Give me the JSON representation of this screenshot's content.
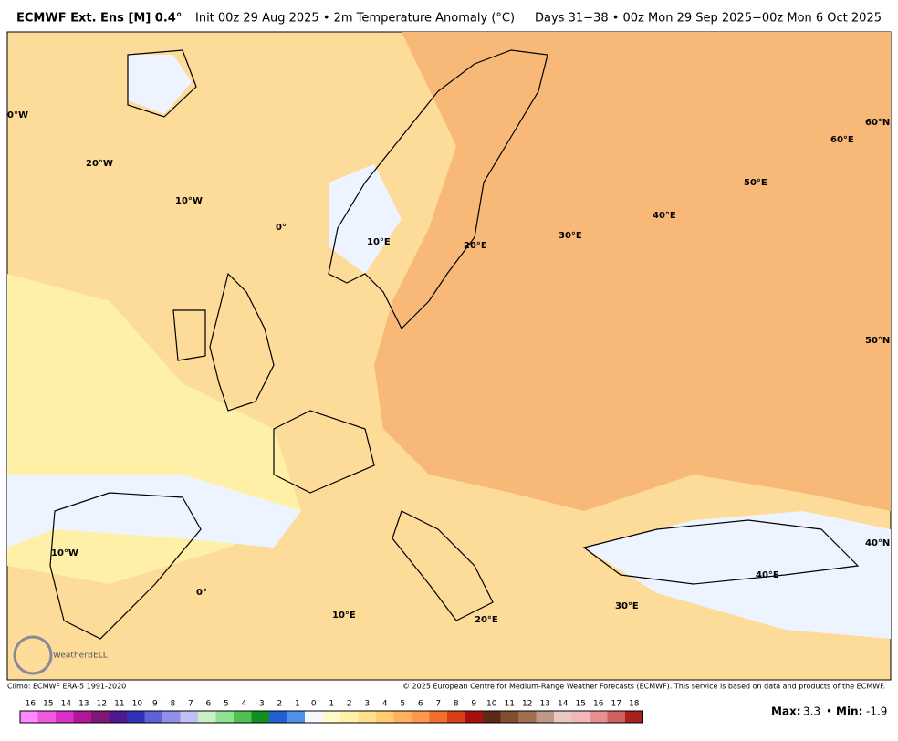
{
  "header": {
    "model": "ECMWF Ext. Ens [M] 0.4°",
    "info": "Init 00z 29 Aug 2025 • 2m Temperature Anomaly (°C)",
    "period": "Days 31−38 • 00z Mon 29 Sep 2025−00z Mon 6 Oct 2025"
  },
  "map": {
    "grid_labels": [
      "0°W",
      "20°W",
      "10°W",
      "0°",
      "10°E",
      "20°E",
      "30°E",
      "40°E",
      "50°E",
      "60°E",
      "60°N",
      "50°N",
      "40°N",
      "40°E",
      "30°E",
      "20°E",
      "10°E",
      "0°",
      "10°W"
    ],
    "logo": "WeatherBELL"
  },
  "footer": {
    "climo": "Climo: ECMWF ERA-5 1991-2020",
    "copyright": "© 2025 European Centre for Medium-Range Weather Forecasts (ECMWF). This service is based on data and products of the ECMWF."
  },
  "colorbar": {
    "values": [
      -16,
      -15,
      -14,
      -13,
      -12,
      -11,
      -10,
      -9,
      -8,
      -7,
      -6,
      -5,
      -4,
      -3,
      -2,
      -1,
      0,
      1,
      2,
      3,
      4,
      5,
      6,
      7,
      8,
      9,
      10,
      11,
      12,
      13,
      14,
      15,
      16,
      17,
      18
    ],
    "colors": [
      "#ff88ff",
      "#f058e0",
      "#d830c8",
      "#b01898",
      "#801878",
      "#501890",
      "#3030b8",
      "#6060d8",
      "#9090e8",
      "#c0c0f4",
      "#c8f0c8",
      "#90e090",
      "#50c050",
      "#109020",
      "#2060d0",
      "#5090e8",
      "#f4f8ff",
      "#fffac8",
      "#fff0a8",
      "#ffe08c",
      "#ffcc70",
      "#ffb060",
      "#ff9848",
      "#f07028",
      "#d84018",
      "#a81010",
      "#602818",
      "#805030",
      "#a07050",
      "#c09888",
      "#e8c8c0",
      "#f0b8b8",
      "#e89090",
      "#d06060",
      "#a82020"
    ]
  },
  "stats": {
    "max_label": "Max:",
    "max": 3.3,
    "separator": "•",
    "min_label": "Min:",
    "min": -1.9
  }
}
